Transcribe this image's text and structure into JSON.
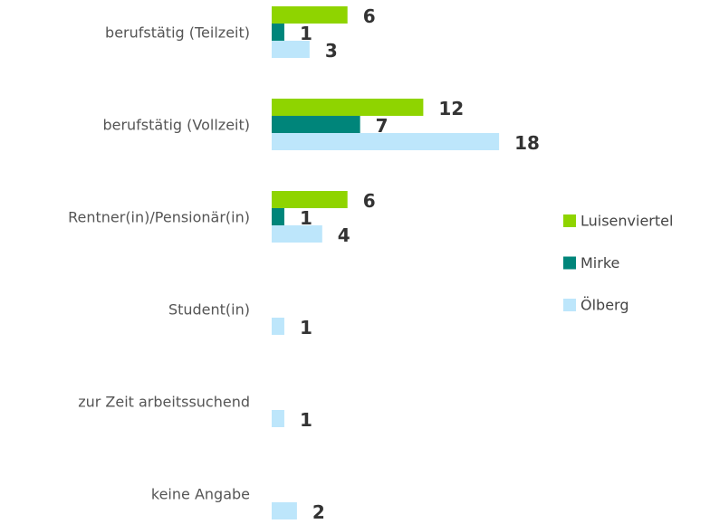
{
  "chart_data": {
    "type": "hbar",
    "categories": [
      "berufstätig (Teilzeit)",
      "berufstätig (Vollzeit)",
      "Rentner(in)/Pensionär(in)",
      "Student(in)",
      "zur Zeit arbeitssuchend",
      "keine Angabe"
    ],
    "series": [
      {
        "name": "Luisenviertel",
        "color": "#8fd400",
        "values": [
          6,
          12,
          6,
          null,
          null,
          null
        ]
      },
      {
        "name": "Mirke",
        "color": "#00857a",
        "values": [
          1,
          7,
          1,
          null,
          null,
          null
        ]
      },
      {
        "name": "Ölberg",
        "color": "#bde6fb",
        "values": [
          3,
          18,
          4,
          1,
          1,
          2
        ]
      }
    ],
    "legend": "right"
  }
}
